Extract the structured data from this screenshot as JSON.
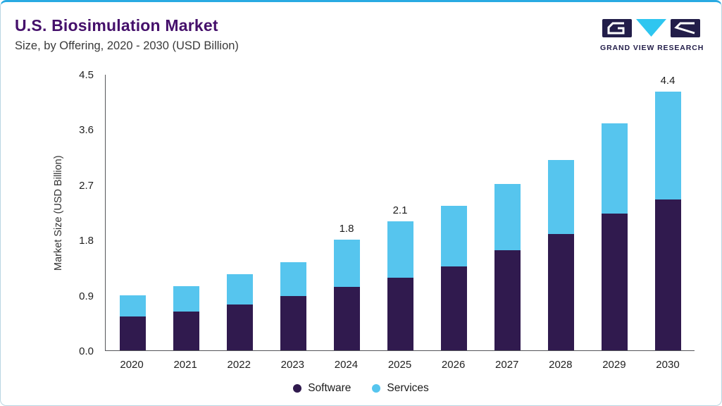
{
  "header": {
    "title": "U.S. Biosimulation Market",
    "subtitle": "Size, by Offering, 2020 - 2030 (USD Billion)",
    "logo_text": "GRAND VIEW RESEARCH"
  },
  "colors": {
    "accent_top_border": "#29aae2",
    "title_purple": "#45106b",
    "software": "#301a4e",
    "services": "#56c5ee",
    "logo_navy": "#221d49",
    "logo_cyan": "#2ec6f0"
  },
  "chart_data": {
    "type": "bar",
    "stacked": true,
    "title": "U.S. Biosimulation Market Size, by Offering, 2020 - 2030 (USD Billion)",
    "xlabel": "",
    "ylabel": "Market Size (USD Billion)",
    "ylim": [
      0,
      4.5
    ],
    "yticks": [
      0.0,
      0.9,
      1.8,
      2.7,
      3.6,
      4.5
    ],
    "ytick_labels": [
      "0.0",
      "0.9",
      "1.8",
      "2.7",
      "3.6",
      "4.5"
    ],
    "grid": false,
    "legend_position": "bottom",
    "categories": [
      "2020",
      "2021",
      "2022",
      "2023",
      "2024",
      "2025",
      "2026",
      "2027",
      "2028",
      "2029",
      "2030"
    ],
    "series": [
      {
        "name": "Software",
        "color": "#301a4e",
        "values": [
          0.55,
          0.63,
          0.75,
          0.89,
          1.03,
          1.18,
          1.37,
          1.63,
          1.89,
          2.23,
          2.57
        ]
      },
      {
        "name": "Services",
        "color": "#56c5ee",
        "values": [
          0.35,
          0.42,
          0.49,
          0.55,
          0.77,
          0.92,
          0.98,
          1.08,
          1.21,
          1.47,
          1.83
        ]
      }
    ],
    "totals": [
      0.9,
      1.05,
      1.24,
      1.44,
      1.8,
      2.1,
      2.35,
      2.71,
      3.1,
      3.7,
      4.4
    ],
    "bar_labels": [
      "",
      "",
      "",
      "",
      "1.8",
      "2.1",
      "",
      "",
      "",
      "",
      "4.4"
    ]
  }
}
